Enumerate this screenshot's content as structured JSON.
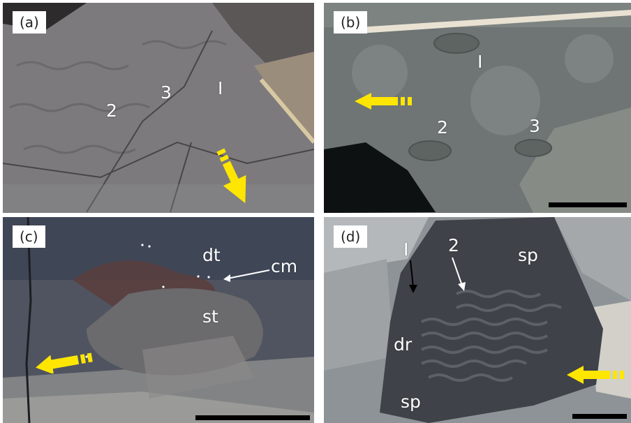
{
  "panels": [
    {
      "id": "a",
      "label": "(a)",
      "annotations": [
        "2",
        "3",
        "I"
      ]
    },
    {
      "id": "b",
      "label": "(b)",
      "annotations": [
        "I",
        "2",
        "3"
      ]
    },
    {
      "id": "c",
      "label": "(c)",
      "annotations": [
        "dt",
        "cm",
        "st"
      ]
    },
    {
      "id": "d",
      "label": "(d)",
      "annotations": [
        "I",
        "2",
        "sp",
        "dr",
        "sp"
      ]
    }
  ],
  "colors": {
    "arrow": "#FFE600",
    "scale_bar": "#000000",
    "annotation_text": "#FFFFFF"
  },
  "icons": [
    "yellow-dashed-arrow-icon",
    "pointer-arrow-icon"
  ]
}
